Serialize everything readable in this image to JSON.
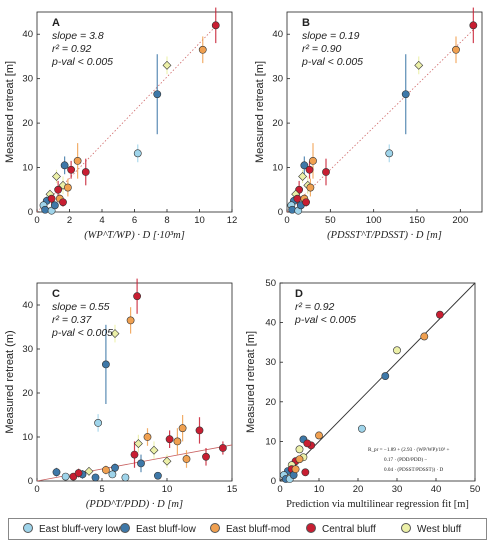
{
  "categories": [
    {
      "key": "vlow",
      "label": "East bluff-very low",
      "color": "#9fd4ea"
    },
    {
      "key": "low",
      "label": "East bluff-low",
      "color": "#3e78a8"
    },
    {
      "key": "mod",
      "label": "East bluff-mod",
      "color": "#f0a050"
    },
    {
      "key": "central",
      "label": "Central bluff",
      "color": "#c81e32"
    },
    {
      "key": "west",
      "label": "West bluff",
      "color": "#ecf0a8"
    }
  ],
  "chart_data": [
    {
      "id": "A",
      "type": "scatter",
      "panel_label": "A",
      "annotations": [
        "slope = 3.8",
        "r² = 0.92",
        "p-val < 0.005"
      ],
      "ylabel": "Measured retreat [m]",
      "xlabel": "(WP^T/WP) · D [·10³m]",
      "xlim": [
        0,
        12
      ],
      "ylim": [
        0,
        45
      ],
      "xticks": [
        "0",
        "2",
        "4",
        "6",
        "8",
        "10",
        "12"
      ],
      "yticks": [
        "0",
        "10",
        "20",
        "30",
        "40"
      ],
      "fit_line": {
        "x": [
          0,
          11
        ],
        "y": [
          0,
          41.8
        ],
        "style": "dotted"
      },
      "points": [
        {
          "c": "mod",
          "x": 10.2,
          "y": 36.5,
          "e": 3
        },
        {
          "c": "central",
          "x": 11.0,
          "y": 42,
          "e": 4
        },
        {
          "c": "west",
          "x": 8.0,
          "y": 33,
          "e": 2
        },
        {
          "c": "low",
          "x": 7.4,
          "y": 26.5,
          "e": 9
        },
        {
          "c": "vlow",
          "x": 6.2,
          "y": 13.2,
          "e": 2
        },
        {
          "c": "mod",
          "x": 2.5,
          "y": 11.5,
          "e": 4
        },
        {
          "c": "low",
          "x": 1.7,
          "y": 10.5,
          "e": 2
        },
        {
          "c": "central",
          "x": 3.0,
          "y": 9,
          "e": 3
        },
        {
          "c": "central",
          "x": 2.1,
          "y": 9.5,
          "e": 2
        },
        {
          "c": "west",
          "x": 1.2,
          "y": 8,
          "e": 1.5
        },
        {
          "c": "west",
          "x": 1.6,
          "y": 6,
          "e": 2
        },
        {
          "c": "central",
          "x": 1.3,
          "y": 5,
          "e": 2
        },
        {
          "c": "mod",
          "x": 1.9,
          "y": 5.5,
          "e": 2
        },
        {
          "c": "west",
          "x": 0.8,
          "y": 4,
          "e": 1
        },
        {
          "c": "low",
          "x": 0.6,
          "y": 2.5,
          "e": 1
        },
        {
          "c": "central",
          "x": 0.9,
          "y": 3,
          "e": 1.5
        },
        {
          "c": "vlow",
          "x": 0.4,
          "y": 1.5,
          "e": 0.5
        },
        {
          "c": "low",
          "x": 0.5,
          "y": 0.5,
          "e": 0.5
        },
        {
          "c": "vlow",
          "x": 0.9,
          "y": 0.3,
          "e": 0.5
        },
        {
          "c": "low",
          "x": 1.1,
          "y": 1.5,
          "e": 0.8
        },
        {
          "c": "mod",
          "x": 1.4,
          "y": 3,
          "e": 1
        },
        {
          "c": "central",
          "x": 1.6,
          "y": 2.2,
          "e": 1
        }
      ]
    },
    {
      "id": "B",
      "type": "scatter",
      "panel_label": "B",
      "annotations": [
        "slope = 0.19",
        "r² = 0.90",
        "p-val < 0.005"
      ],
      "ylabel": "Measured retreat [m]",
      "xlabel": "(PDSST^T/PDSST) · D [m]",
      "xlim": [
        0,
        225
      ],
      "ylim": [
        0,
        45
      ],
      "xticks": [
        "0",
        "50",
        "100",
        "150",
        "200"
      ],
      "yticks": [
        "0",
        "10",
        "20",
        "30",
        "40"
      ],
      "fit_line": {
        "x": [
          0,
          215
        ],
        "y": [
          0,
          41
        ],
        "style": "dotted"
      },
      "points": [
        {
          "c": "mod",
          "x": 195,
          "y": 36.5,
          "e": 3
        },
        {
          "c": "central",
          "x": 215,
          "y": 42,
          "e": 4
        },
        {
          "c": "west",
          "x": 152,
          "y": 33,
          "e": 2
        },
        {
          "c": "low",
          "x": 137,
          "y": 26.5,
          "e": 9
        },
        {
          "c": "vlow",
          "x": 118,
          "y": 13.2,
          "e": 2
        },
        {
          "c": "mod",
          "x": 30,
          "y": 11.5,
          "e": 4
        },
        {
          "c": "low",
          "x": 20,
          "y": 10.5,
          "e": 2
        },
        {
          "c": "central",
          "x": 45,
          "y": 9,
          "e": 3
        },
        {
          "c": "central",
          "x": 26,
          "y": 9.5,
          "e": 2
        },
        {
          "c": "west",
          "x": 18,
          "y": 8,
          "e": 1.5
        },
        {
          "c": "west",
          "x": 24,
          "y": 6,
          "e": 2
        },
        {
          "c": "central",
          "x": 14,
          "y": 5,
          "e": 2
        },
        {
          "c": "mod",
          "x": 27,
          "y": 5.5,
          "e": 2
        },
        {
          "c": "west",
          "x": 10,
          "y": 4,
          "e": 1
        },
        {
          "c": "low",
          "x": 8,
          "y": 2.5,
          "e": 1
        },
        {
          "c": "central",
          "x": 12,
          "y": 3,
          "e": 1.5
        },
        {
          "c": "vlow",
          "x": 5,
          "y": 1.5,
          "e": 0.5
        },
        {
          "c": "low",
          "x": 6,
          "y": 0.5,
          "e": 0.5
        },
        {
          "c": "vlow",
          "x": 13,
          "y": 0.3,
          "e": 0.5
        },
        {
          "c": "low",
          "x": 16,
          "y": 1.5,
          "e": 0.8
        },
        {
          "c": "mod",
          "x": 20,
          "y": 3,
          "e": 1
        },
        {
          "c": "central",
          "x": 22,
          "y": 2.2,
          "e": 1
        }
      ]
    },
    {
      "id": "C",
      "type": "scatter",
      "panel_label": "C",
      "annotations": [
        "slope = 0.55",
        "r² = 0.37",
        "p-val < 0.005"
      ],
      "ylabel": "Measured retreat (m)",
      "xlabel": "(PDD^T/PDD) · D [m]",
      "xlim": [
        0,
        15
      ],
      "ylim": [
        0,
        45
      ],
      "xticks": [
        "0",
        "5",
        "10",
        "15"
      ],
      "yticks": [
        "0",
        "10",
        "20",
        "30",
        "40"
      ],
      "fit_line": {
        "x": [
          0,
          15
        ],
        "y": [
          0,
          8.2
        ],
        "style": "solid"
      },
      "points": [
        {
          "c": "central",
          "x": 7.7,
          "y": 42,
          "e": 4
        },
        {
          "c": "mod",
          "x": 7.2,
          "y": 36.5,
          "e": 3
        },
        {
          "c": "west",
          "x": 6.0,
          "y": 33.5,
          "e": 2
        },
        {
          "c": "low",
          "x": 5.3,
          "y": 26.5,
          "e": 9
        },
        {
          "c": "vlow",
          "x": 4.7,
          "y": 13.2,
          "e": 2
        },
        {
          "c": "central",
          "x": 12.5,
          "y": 11.5,
          "e": 3
        },
        {
          "c": "mod",
          "x": 11.2,
          "y": 12,
          "e": 3
        },
        {
          "c": "mod",
          "x": 10.8,
          "y": 9,
          "e": 3
        },
        {
          "c": "central",
          "x": 10.2,
          "y": 9.5,
          "e": 2
        },
        {
          "c": "mod",
          "x": 8.5,
          "y": 10,
          "e": 2
        },
        {
          "c": "central",
          "x": 7.5,
          "y": 6,
          "e": 3
        },
        {
          "c": "west",
          "x": 7.8,
          "y": 8.5,
          "e": 2
        },
        {
          "c": "west",
          "x": 9.0,
          "y": 7,
          "e": 2
        },
        {
          "c": "low",
          "x": 8.0,
          "y": 4,
          "e": 2
        },
        {
          "c": "central",
          "x": 13.0,
          "y": 5.5,
          "e": 2
        },
        {
          "c": "central",
          "x": 14.3,
          "y": 7.5,
          "e": 1.5
        },
        {
          "c": "mod",
          "x": 11.5,
          "y": 5,
          "e": 2
        },
        {
          "c": "west",
          "x": 10.0,
          "y": 4.5,
          "e": 1.5
        },
        {
          "c": "low",
          "x": 3.5,
          "y": 1.5,
          "e": 1
        },
        {
          "c": "low",
          "x": 6.0,
          "y": 3,
          "e": 1
        },
        {
          "c": "vlow",
          "x": 2.2,
          "y": 1,
          "e": 0.5
        },
        {
          "c": "low",
          "x": 1.5,
          "y": 2,
          "e": 1
        },
        {
          "c": "central",
          "x": 2.8,
          "y": 1,
          "e": 0.8
        },
        {
          "c": "low",
          "x": 4.5,
          "y": 0.8,
          "e": 0.5
        },
        {
          "c": "vlow",
          "x": 6.8,
          "y": 0.8,
          "e": 0.5
        },
        {
          "c": "mod",
          "x": 5.3,
          "y": 2.5,
          "e": 1
        },
        {
          "c": "central",
          "x": 3.2,
          "y": 1.8,
          "e": 1
        },
        {
          "c": "west",
          "x": 4.0,
          "y": 2.2,
          "e": 1
        },
        {
          "c": "low",
          "x": 9.3,
          "y": 1.2,
          "e": 0.8
        },
        {
          "c": "vlow",
          "x": 5.8,
          "y": 1.5,
          "e": 0.6
        }
      ]
    },
    {
      "id": "D",
      "type": "scatter",
      "panel_label": "D",
      "annotations": [
        "r² = 0.92",
        "p-val < 0.005"
      ],
      "ylabel": "",
      "xlabel": "Prediction via multilinear regression fit [m]",
      "xlim": [
        0,
        50
      ],
      "ylim": [
        0,
        50
      ],
      "xticks": [
        "0",
        "10",
        "20",
        "30",
        "40",
        "50"
      ],
      "yticks": [
        "0",
        "10",
        "20",
        "30",
        "40",
        "50"
      ],
      "fit_line": {
        "x": [
          0,
          50
        ],
        "y": [
          0,
          50
        ],
        "style": "solid"
      },
      "equation": [
        "R_pr = −1.89 + (2.93 · (WP/WP)/10³ +",
        "0.17 · (PDD/PDD) −",
        "0.04 · (PDSST/PDSST)) · D"
      ],
      "points": [
        {
          "c": "central",
          "x": 41,
          "y": 42,
          "e": 0
        },
        {
          "c": "mod",
          "x": 37,
          "y": 36.5,
          "e": 0
        },
        {
          "c": "west",
          "x": 30,
          "y": 33,
          "e": 0
        },
        {
          "c": "low",
          "x": 27,
          "y": 26.5,
          "e": 0
        },
        {
          "c": "vlow",
          "x": 21,
          "y": 13.2,
          "e": 0
        },
        {
          "c": "mod",
          "x": 10,
          "y": 11.5,
          "e": 0
        },
        {
          "c": "low",
          "x": 6,
          "y": 10.5,
          "e": 0
        },
        {
          "c": "central",
          "x": 8,
          "y": 9,
          "e": 0
        },
        {
          "c": "central",
          "x": 7,
          "y": 9.5,
          "e": 0
        },
        {
          "c": "west",
          "x": 5,
          "y": 8,
          "e": 0
        },
        {
          "c": "west",
          "x": 6,
          "y": 6,
          "e": 0
        },
        {
          "c": "central",
          "x": 4,
          "y": 5,
          "e": 0
        },
        {
          "c": "mod",
          "x": 5,
          "y": 5.5,
          "e": 0
        },
        {
          "c": "west",
          "x": 3,
          "y": 4,
          "e": 0
        },
        {
          "c": "low",
          "x": 2,
          "y": 2.5,
          "e": 0
        },
        {
          "c": "central",
          "x": 3,
          "y": 3,
          "e": 0
        },
        {
          "c": "vlow",
          "x": 1,
          "y": 1.5,
          "e": 0
        },
        {
          "c": "low",
          "x": 1.5,
          "y": 0.5,
          "e": 0
        },
        {
          "c": "vlow",
          "x": 2.5,
          "y": 0.5,
          "e": 0
        },
        {
          "c": "low",
          "x": 3.5,
          "y": 1.5,
          "e": 0
        },
        {
          "c": "mod",
          "x": 4,
          "y": 3,
          "e": 0
        },
        {
          "c": "central",
          "x": 6.5,
          "y": 2.2,
          "e": 0
        }
      ]
    }
  ]
}
